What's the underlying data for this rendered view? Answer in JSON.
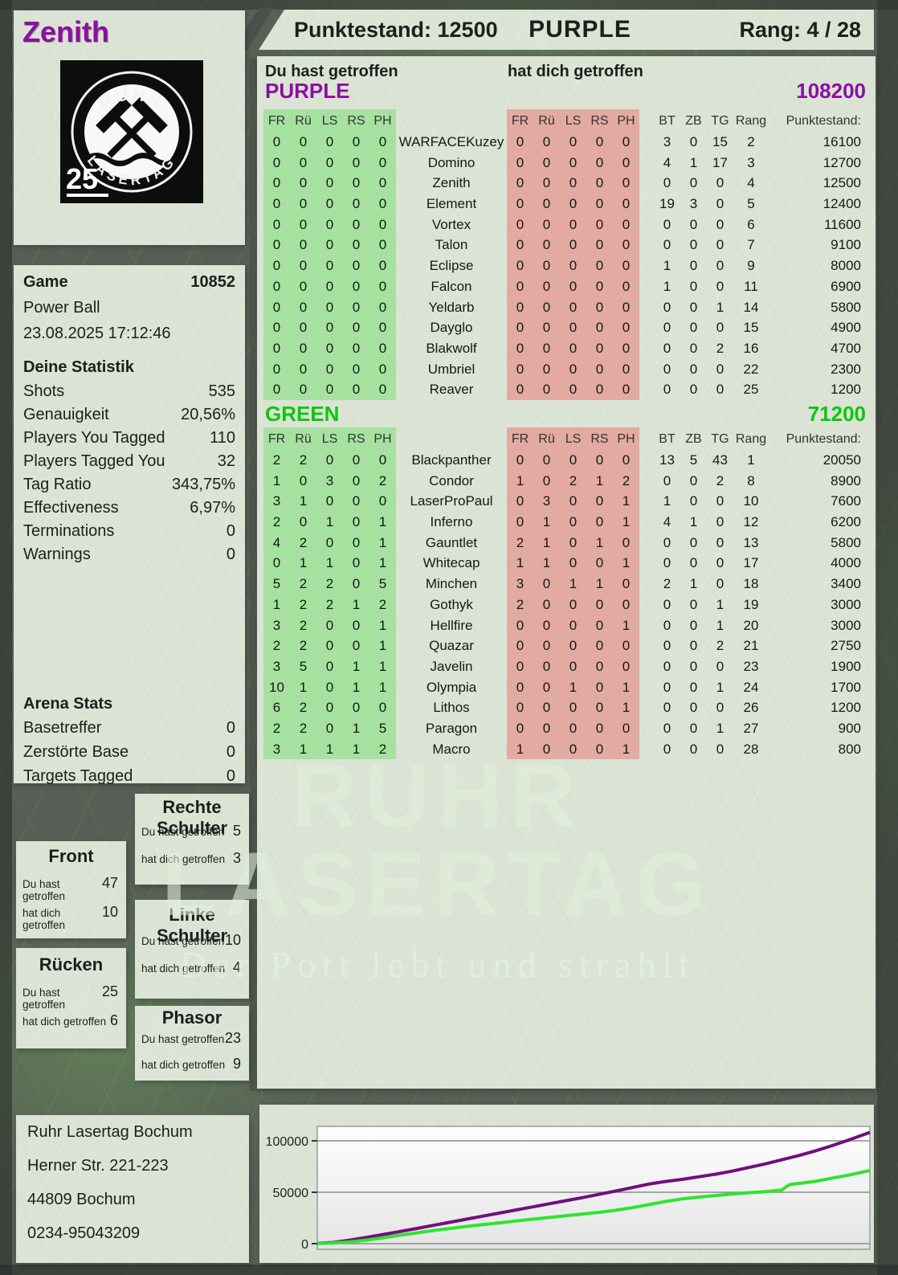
{
  "colors": {
    "purple": "#8a10a0",
    "green_label": "#0bc80b",
    "cell_green": "#a6e1a0",
    "cell_red": "#e2aaa0",
    "chart_purple": "#70107c",
    "chart_green": "#2fe42f"
  },
  "header": {
    "player": "Zenith",
    "punktestand": "Punktestand: 12500",
    "team": "PURPLE",
    "rang": "Rang: 4 / 28"
  },
  "logo": {
    "top_text": "RUHR",
    "bottom_text": "LASERTAG",
    "badge": "25"
  },
  "game": {
    "label": "Game",
    "id": "10852",
    "mode": "Power Ball",
    "datetime": "23.08.2025 17:12:46"
  },
  "stats": {
    "title": "Deine Statistik",
    "rows": [
      [
        "Shots",
        "535"
      ],
      [
        "Genauigkeit",
        "20,56%"
      ],
      [
        "Players You Tagged",
        "110"
      ],
      [
        "Players Tagged You",
        "32"
      ],
      [
        "Tag Ratio",
        "343,75%"
      ],
      [
        "Effectiveness",
        "6,97%"
      ],
      [
        "Terminations",
        "0"
      ],
      [
        "Warnings",
        "0"
      ]
    ]
  },
  "arena": {
    "title": "Arena Stats",
    "rows": [
      [
        "Basetreffer",
        "0"
      ],
      [
        "Zerstörte Base",
        "0"
      ],
      [
        "Targets Tagged",
        "0"
      ]
    ]
  },
  "hit_tables": {
    "left_header": "Du hast getroffen",
    "right_header": "hat dich getroffen",
    "columns": [
      "FR",
      "Rü",
      "LS",
      "RS",
      "PH"
    ],
    "right_columns": [
      "BT",
      "ZB",
      "TG",
      "Rang",
      "Punktestand:"
    ],
    "teams": [
      {
        "name": "PURPLE",
        "total": "108200",
        "rows": [
          {
            "player": "WARFACEKuzey",
            "given": [
              "0",
              "0",
              "0",
              "0",
              "0"
            ],
            "taken": [
              "0",
              "0",
              "0",
              "0",
              "0"
            ],
            "bt": "3",
            "zb": "0",
            "tg": "15",
            "rang": "2",
            "punkte": "16100"
          },
          {
            "player": "Domino",
            "given": [
              "0",
              "0",
              "0",
              "0",
              "0"
            ],
            "taken": [
              "0",
              "0",
              "0",
              "0",
              "0"
            ],
            "bt": "4",
            "zb": "1",
            "tg": "17",
            "rang": "3",
            "punkte": "12700"
          },
          {
            "player": "Zenith",
            "given": [
              "0",
              "0",
              "0",
              "0",
              "0"
            ],
            "taken": [
              "0",
              "0",
              "0",
              "0",
              "0"
            ],
            "bt": "0",
            "zb": "0",
            "tg": "0",
            "rang": "4",
            "punkte": "12500"
          },
          {
            "player": "Element",
            "given": [
              "0",
              "0",
              "0",
              "0",
              "0"
            ],
            "taken": [
              "0",
              "0",
              "0",
              "0",
              "0"
            ],
            "bt": "19",
            "zb": "3",
            "tg": "0",
            "rang": "5",
            "punkte": "12400"
          },
          {
            "player": "Vortex",
            "given": [
              "0",
              "0",
              "0",
              "0",
              "0"
            ],
            "taken": [
              "0",
              "0",
              "0",
              "0",
              "0"
            ],
            "bt": "0",
            "zb": "0",
            "tg": "0",
            "rang": "6",
            "punkte": "11600"
          },
          {
            "player": "Talon",
            "given": [
              "0",
              "0",
              "0",
              "0",
              "0"
            ],
            "taken": [
              "0",
              "0",
              "0",
              "0",
              "0"
            ],
            "bt": "0",
            "zb": "0",
            "tg": "0",
            "rang": "7",
            "punkte": "9100"
          },
          {
            "player": "Eclipse",
            "given": [
              "0",
              "0",
              "0",
              "0",
              "0"
            ],
            "taken": [
              "0",
              "0",
              "0",
              "0",
              "0"
            ],
            "bt": "1",
            "zb": "0",
            "tg": "0",
            "rang": "9",
            "punkte": "8000"
          },
          {
            "player": "Falcon",
            "given": [
              "0",
              "0",
              "0",
              "0",
              "0"
            ],
            "taken": [
              "0",
              "0",
              "0",
              "0",
              "0"
            ],
            "bt": "1",
            "zb": "0",
            "tg": "0",
            "rang": "11",
            "punkte": "6900"
          },
          {
            "player": "Yeldarb",
            "given": [
              "0",
              "0",
              "0",
              "0",
              "0"
            ],
            "taken": [
              "0",
              "0",
              "0",
              "0",
              "0"
            ],
            "bt": "0",
            "zb": "0",
            "tg": "1",
            "rang": "14",
            "punkte": "5800"
          },
          {
            "player": "Dayglo",
            "given": [
              "0",
              "0",
              "0",
              "0",
              "0"
            ],
            "taken": [
              "0",
              "0",
              "0",
              "0",
              "0"
            ],
            "bt": "0",
            "zb": "0",
            "tg": "0",
            "rang": "15",
            "punkte": "4900"
          },
          {
            "player": "Blakwolf",
            "given": [
              "0",
              "0",
              "0",
              "0",
              "0"
            ],
            "taken": [
              "0",
              "0",
              "0",
              "0",
              "0"
            ],
            "bt": "0",
            "zb": "0",
            "tg": "2",
            "rang": "16",
            "punkte": "4700"
          },
          {
            "player": "Umbriel",
            "given": [
              "0",
              "0",
              "0",
              "0",
              "0"
            ],
            "taken": [
              "0",
              "0",
              "0",
              "0",
              "0"
            ],
            "bt": "0",
            "zb": "0",
            "tg": "0",
            "rang": "22",
            "punkte": "2300"
          },
          {
            "player": "Reaver",
            "given": [
              "0",
              "0",
              "0",
              "0",
              "0"
            ],
            "taken": [
              "0",
              "0",
              "0",
              "0",
              "0"
            ],
            "bt": "0",
            "zb": "0",
            "tg": "0",
            "rang": "25",
            "punkte": "1200"
          }
        ]
      },
      {
        "name": "GREEN",
        "total": "71200",
        "rows": [
          {
            "player": "Blackpanther",
            "given": [
              "2",
              "2",
              "0",
              "0",
              "0"
            ],
            "taken": [
              "0",
              "0",
              "0",
              "0",
              "0"
            ],
            "bt": "13",
            "zb": "5",
            "tg": "43",
            "rang": "1",
            "punkte": "20050"
          },
          {
            "player": "Condor",
            "given": [
              "1",
              "0",
              "3",
              "0",
              "2"
            ],
            "taken": [
              "1",
              "0",
              "2",
              "1",
              "2"
            ],
            "bt": "0",
            "zb": "0",
            "tg": "2",
            "rang": "8",
            "punkte": "8900"
          },
          {
            "player": "LaserProPaul",
            "given": [
              "3",
              "1",
              "0",
              "0",
              "0"
            ],
            "taken": [
              "0",
              "3",
              "0",
              "0",
              "1"
            ],
            "bt": "1",
            "zb": "0",
            "tg": "0",
            "rang": "10",
            "punkte": "7600"
          },
          {
            "player": "Inferno",
            "given": [
              "2",
              "0",
              "1",
              "0",
              "1"
            ],
            "taken": [
              "0",
              "1",
              "0",
              "0",
              "1"
            ],
            "bt": "4",
            "zb": "1",
            "tg": "0",
            "rang": "12",
            "punkte": "6200"
          },
          {
            "player": "Gauntlet",
            "given": [
              "4",
              "2",
              "0",
              "0",
              "1"
            ],
            "taken": [
              "2",
              "1",
              "0",
              "1",
              "0"
            ],
            "bt": "0",
            "zb": "0",
            "tg": "0",
            "rang": "13",
            "punkte": "5800"
          },
          {
            "player": "Whitecap",
            "given": [
              "0",
              "1",
              "1",
              "0",
              "1"
            ],
            "taken": [
              "1",
              "1",
              "0",
              "0",
              "1"
            ],
            "bt": "0",
            "zb": "0",
            "tg": "0",
            "rang": "17",
            "punkte": "4000"
          },
          {
            "player": "Minchen",
            "given": [
              "5",
              "2",
              "2",
              "0",
              "5"
            ],
            "taken": [
              "3",
              "0",
              "1",
              "1",
              "0"
            ],
            "bt": "2",
            "zb": "1",
            "tg": "0",
            "rang": "18",
            "punkte": "3400"
          },
          {
            "player": "Gothyk",
            "given": [
              "1",
              "2",
              "2",
              "1",
              "2"
            ],
            "taken": [
              "2",
              "0",
              "0",
              "0",
              "0"
            ],
            "bt": "0",
            "zb": "0",
            "tg": "1",
            "rang": "19",
            "punkte": "3000"
          },
          {
            "player": "Hellfire",
            "given": [
              "3",
              "2",
              "0",
              "0",
              "1"
            ],
            "taken": [
              "0",
              "0",
              "0",
              "0",
              "1"
            ],
            "bt": "0",
            "zb": "0",
            "tg": "1",
            "rang": "20",
            "punkte": "3000"
          },
          {
            "player": "Quazar",
            "given": [
              "2",
              "2",
              "0",
              "0",
              "1"
            ],
            "taken": [
              "0",
              "0",
              "0",
              "0",
              "0"
            ],
            "bt": "0",
            "zb": "0",
            "tg": "2",
            "rang": "21",
            "punkte": "2750"
          },
          {
            "player": "Javelin",
            "given": [
              "3",
              "5",
              "0",
              "1",
              "1"
            ],
            "taken": [
              "0",
              "0",
              "0",
              "0",
              "0"
            ],
            "bt": "0",
            "zb": "0",
            "tg": "0",
            "rang": "23",
            "punkte": "1900"
          },
          {
            "player": "Olympia",
            "given": [
              "10",
              "1",
              "0",
              "1",
              "1"
            ],
            "taken": [
              "0",
              "0",
              "1",
              "0",
              "1"
            ],
            "bt": "0",
            "zb": "0",
            "tg": "1",
            "rang": "24",
            "punkte": "1700"
          },
          {
            "player": "Lithos",
            "given": [
              "6",
              "2",
              "0",
              "0",
              "0"
            ],
            "taken": [
              "0",
              "0",
              "0",
              "0",
              "1"
            ],
            "bt": "0",
            "zb": "0",
            "tg": "0",
            "rang": "26",
            "punkte": "1200"
          },
          {
            "player": "Paragon",
            "given": [
              "2",
              "2",
              "0",
              "1",
              "5"
            ],
            "taken": [
              "0",
              "0",
              "0",
              "0",
              "0"
            ],
            "bt": "0",
            "zb": "0",
            "tg": "1",
            "rang": "27",
            "punkte": "900"
          },
          {
            "player": "Macro",
            "given": [
              "3",
              "1",
              "1",
              "1",
              "2"
            ],
            "taken": [
              "1",
              "0",
              "0",
              "0",
              "1"
            ],
            "bt": "0",
            "zb": "0",
            "tg": "0",
            "rang": "28",
            "punkte": "800"
          }
        ]
      }
    ]
  },
  "body_labels": {
    "du": "Du hast getroffen",
    "dich": "hat dich getroffen"
  },
  "body_parts": [
    {
      "title": "Front",
      "du": "47",
      "dich": "10"
    },
    {
      "title": "Rücken",
      "du": "25",
      "dich": "6"
    },
    {
      "title": "Rechte Schulter",
      "du": "5",
      "dich": "3"
    },
    {
      "title": "Linke Schulter",
      "du": "10",
      "dich": "4"
    },
    {
      "title": "Phasor",
      "du": "23",
      "dich": "9"
    }
  ],
  "address": {
    "lines": [
      "Ruhr Lasertag Bochum",
      "Herner Str. 221-223",
      "44809 Bochum",
      "0234-95043209"
    ]
  },
  "watermark": {
    "line1": "RUHR",
    "line2": "LASERTAG",
    "slogan": "Der Pott lebt und strahlt"
  },
  "chart_data": {
    "type": "line",
    "title": "",
    "xlabel": "",
    "ylabel": "",
    "ylim": [
      0,
      114000
    ],
    "grid": true,
    "legend": "none",
    "yticks": [
      {
        "value": 0,
        "label": "0"
      },
      {
        "value": 50000,
        "label": "50000"
      },
      {
        "value": 100000,
        "label": "100000"
      }
    ],
    "series": [
      {
        "name": "PURPLE",
        "color": "#70107c",
        "final": 108200,
        "points": [
          [
            0,
            300
          ],
          [
            0.03,
            1200
          ],
          [
            0.06,
            3500
          ],
          [
            0.09,
            6200
          ],
          [
            0.12,
            9000
          ],
          [
            0.15,
            11800
          ],
          [
            0.18,
            14800
          ],
          [
            0.21,
            17800
          ],
          [
            0.24,
            20800
          ],
          [
            0.27,
            23800
          ],
          [
            0.3,
            26800
          ],
          [
            0.33,
            29800
          ],
          [
            0.36,
            32800
          ],
          [
            0.39,
            35800
          ],
          [
            0.42,
            38800
          ],
          [
            0.45,
            41800
          ],
          [
            0.48,
            44800
          ],
          [
            0.51,
            48000
          ],
          [
            0.54,
            51200
          ],
          [
            0.57,
            54500
          ],
          [
            0.6,
            58000
          ],
          [
            0.63,
            60500
          ],
          [
            0.66,
            62500
          ],
          [
            0.69,
            65000
          ],
          [
            0.72,
            67500
          ],
          [
            0.75,
            70500
          ],
          [
            0.78,
            74000
          ],
          [
            0.81,
            77500
          ],
          [
            0.84,
            81500
          ],
          [
            0.87,
            85500
          ],
          [
            0.9,
            90000
          ],
          [
            0.93,
            95000
          ],
          [
            0.96,
            100500
          ],
          [
            1,
            108200
          ]
        ]
      },
      {
        "name": "GREEN",
        "color": "#2fe42f",
        "final": 71200,
        "points": [
          [
            0,
            200
          ],
          [
            0.03,
            700
          ],
          [
            0.06,
            1800
          ],
          [
            0.09,
            3500
          ],
          [
            0.12,
            5800
          ],
          [
            0.15,
            8200
          ],
          [
            0.18,
            10500
          ],
          [
            0.21,
            12800
          ],
          [
            0.24,
            14800
          ],
          [
            0.27,
            16800
          ],
          [
            0.3,
            18500
          ],
          [
            0.33,
            20200
          ],
          [
            0.36,
            22000
          ],
          [
            0.39,
            23800
          ],
          [
            0.42,
            25500
          ],
          [
            0.45,
            27200
          ],
          [
            0.48,
            28800
          ],
          [
            0.51,
            30500
          ],
          [
            0.54,
            32500
          ],
          [
            0.57,
            35000
          ],
          [
            0.6,
            38000
          ],
          [
            0.63,
            41000
          ],
          [
            0.66,
            43500
          ],
          [
            0.69,
            45200
          ],
          [
            0.72,
            46800
          ],
          [
            0.75,
            48200
          ],
          [
            0.78,
            49500
          ],
          [
            0.81,
            50500
          ],
          [
            0.84,
            52000
          ],
          [
            0.855,
            57500
          ],
          [
            0.87,
            58500
          ],
          [
            0.9,
            60500
          ],
          [
            0.93,
            63500
          ],
          [
            0.96,
            66500
          ],
          [
            1,
            71200
          ]
        ]
      }
    ]
  }
}
